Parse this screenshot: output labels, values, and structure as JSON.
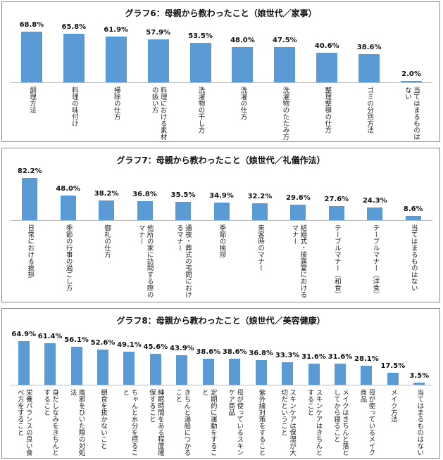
{
  "chart_data": [
    {
      "type": "bar",
      "title": "グラフ6：母親から教わったこと（娘世代／家事）",
      "color": "#5b9bd5",
      "categories": [
        "調理方法",
        "料理の味付け",
        "掃除の仕方",
        "料理における素材の扱い方",
        "洗濯物の干し方",
        "洗濯の仕方",
        "洗濯物のたたみ方",
        "整理整頓の仕方",
        "ゴミの分別方法",
        "当てはまるものはない"
      ],
      "values": [
        68.8,
        65.8,
        61.9,
        57.9,
        53.5,
        48.0,
        47.5,
        40.6,
        38.6,
        2.0
      ],
      "value_labels": [
        "68.8%",
        "65.8%",
        "61.9%",
        "57.9%",
        "53.5%",
        "48.0%",
        "47.5%",
        "40.6%",
        "38.6%",
        "2.0%"
      ]
    },
    {
      "type": "bar",
      "title": "グラフ7：母親から教わったこと（娘世代／礼儀作法）",
      "color": "#5b9bd5",
      "categories": [
        "日常における挨拶",
        "季節の行事の過ごし方",
        "御礼の仕方",
        "他所の家に訪問する際のマナー",
        "通夜・葬式の弔問におけるマナー",
        "季節の挨拶",
        "来客時のマナー",
        "結婚式・披露宴におけるマナー",
        "テーブルマナー（和食）",
        "テーブルマナー（洋食）",
        "当てはまるものはない"
      ],
      "values": [
        82.2,
        48.0,
        38.2,
        36.8,
        35.5,
        34.9,
        32.2,
        29.6,
        27.6,
        24.3,
        8.6
      ],
      "value_labels": [
        "82.2%",
        "48.0%",
        "38.2%",
        "36.8%",
        "35.5%",
        "34.9%",
        "32.2%",
        "29.6%",
        "27.6%",
        "24.3%",
        "8.6%"
      ]
    },
    {
      "type": "bar",
      "title": "グラフ8：母親から教わったこと（娘世代／美容健康）",
      "color": "#5b9bd5",
      "categories": [
        "栄養バランスの良い食べ方をすること",
        "身だしなみをきちんとすること",
        "風邪をひいた際の対処法",
        "朝食を抜かないこと",
        "ちゃんと水分を摂ること",
        "睡眠時間をある程度確保すること",
        "きちんと湯船につかること",
        "定期的に運動をすること",
        "母が使っているスキンケア商品",
        "紫外線対策をすること",
        "スキンケアは保湿が大切だということ",
        "スキンケアはきちんとすること",
        "メイクはきちんと落としてから寝ること",
        "母が使っているメイク商品",
        "メイク方法",
        "当てはまるものはない"
      ],
      "values": [
        64.9,
        61.4,
        56.1,
        52.6,
        49.1,
        45.6,
        43.9,
        38.6,
        38.6,
        36.8,
        33.3,
        31.6,
        31.6,
        28.1,
        17.5,
        3.5
      ],
      "value_labels": [
        "64.9%",
        "61.4%",
        "56.1%",
        "52.6%",
        "49.1%",
        "45.6%",
        "43.9%",
        "38.6%",
        "38.6%",
        "36.8%",
        "33.3%",
        "31.6%",
        "31.6%",
        "28.1%",
        "17.5%",
        "3.5%"
      ]
    }
  ]
}
